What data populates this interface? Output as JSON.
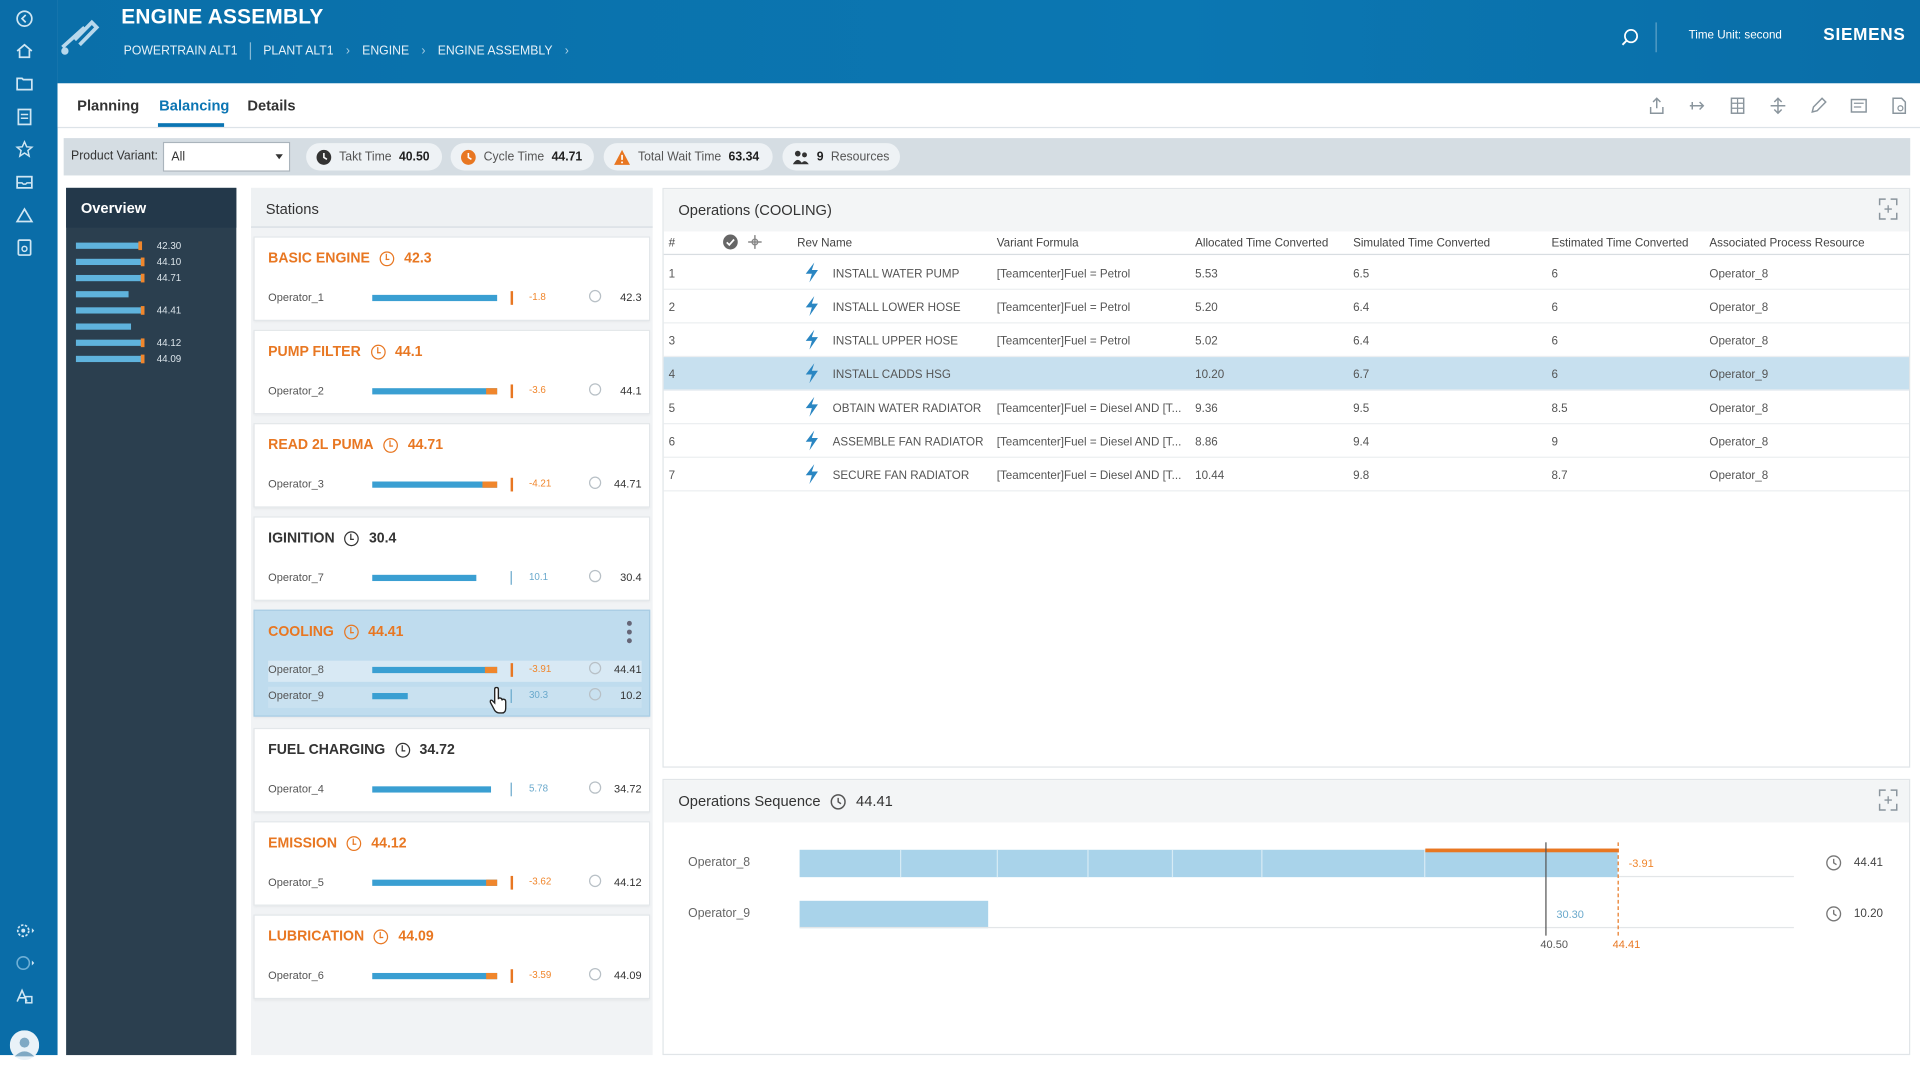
{
  "app": {
    "title": "ENGINE ASSEMBLY",
    "brand": "SIEMENS",
    "time_unit": "Time Unit: second"
  },
  "breadcrumb": [
    "POWERTRAIN ALT1",
    "PLANT ALT1",
    "ENGINE",
    "ENGINE ASSEMBLY"
  ],
  "tabs": [
    "Planning",
    "Balancing",
    "Details"
  ],
  "kpi": {
    "product_variant_label": "Product Variant:",
    "product_variant_value": "All",
    "takt_label": "Takt Time",
    "takt_value": "40.50",
    "cycle_label": "Cycle Time",
    "cycle_value": "44.71",
    "wait_label": "Total Wait Time",
    "wait_value": "63.34",
    "resources_count": "9",
    "resources_label": "Resources"
  },
  "overview": {
    "title": "Overview",
    "values": [
      "42.30",
      "44.10",
      "44.71",
      "",
      "44.41",
      "",
      "44.12",
      "44.09"
    ]
  },
  "stations_title": "Stations",
  "stations": [
    {
      "name": "BASIC ENGINE",
      "time": "42.3",
      "ops": [
        {
          "name": "Operator_1",
          "delta": "-1.8",
          "value": "42.3",
          "fill": 0.89,
          "over": 0
        }
      ]
    },
    {
      "name": "PUMP FILTER",
      "time": "44.1",
      "ops": [
        {
          "name": "Operator_2",
          "delta": "-3.6",
          "value": "44.1",
          "fill": 0.89,
          "over": 0.08
        }
      ]
    },
    {
      "name": "READ 2L PUMA",
      "time": "44.71",
      "ops": [
        {
          "name": "Operator_3",
          "delta": "-4.21",
          "value": "44.71",
          "fill": 0.89,
          "over": 0.1
        }
      ]
    },
    {
      "name": "IGINITION",
      "time": "30.4",
      "ops": [
        {
          "name": "Operator_7",
          "delta": "10.1",
          "value": "30.4",
          "fill": 0.74,
          "over": 0
        }
      ]
    },
    {
      "name": "COOLING",
      "time": "44.41",
      "ops": [
        {
          "name": "Operator_8",
          "delta": "-3.91",
          "value": "44.41",
          "fill": 0.89,
          "over": 0.09
        },
        {
          "name": "Operator_9",
          "delta": "30.3",
          "value": "10.2",
          "fill": 0.25,
          "over": 0
        }
      ]
    },
    {
      "name": "FUEL CHARGING",
      "time": "34.72",
      "ops": [
        {
          "name": "Operator_4",
          "delta": "5.78",
          "value": "34.72",
          "fill": 0.84,
          "over": 0
        }
      ]
    },
    {
      "name": "EMISSION",
      "time": "44.12",
      "ops": [
        {
          "name": "Operator_5",
          "delta": "-3.62",
          "value": "44.12",
          "fill": 0.89,
          "over": 0.08
        }
      ]
    },
    {
      "name": "LUBRICATION",
      "time": "44.09",
      "ops": [
        {
          "name": "Operator_6",
          "delta": "-3.59",
          "value": "44.09",
          "fill": 0.89,
          "over": 0.08
        }
      ]
    }
  ],
  "operations": {
    "title": "Operations (COOLING)",
    "columns": [
      "#",
      "Rev Name",
      "Variant Formula",
      "Allocated Time Converted",
      "Simulated Time Converted",
      "Estimated Time Converted",
      "Associated Process Resource"
    ],
    "rows": [
      [
        "1",
        "INSTALL WATER PUMP",
        "[Teamcenter]Fuel = Petrol",
        "5.53",
        "6.5",
        "6",
        "Operator_8"
      ],
      [
        "2",
        "INSTALL LOWER HOSE",
        "[Teamcenter]Fuel = Petrol",
        "5.20",
        "6.4",
        "6",
        "Operator_8"
      ],
      [
        "3",
        "INSTALL UPPER HOSE",
        "[Teamcenter]Fuel = Petrol",
        "5.02",
        "6.4",
        "6",
        "Operator_8"
      ],
      [
        "4",
        "INSTALL CADDS HSG",
        "",
        "10.20",
        "6.7",
        "6",
        "Operator_9"
      ],
      [
        "5",
        "OBTAIN WATER RADIATOR",
        "[Teamcenter]Fuel = Diesel AND [T...",
        "9.36",
        "9.5",
        "8.5",
        "Operator_8"
      ],
      [
        "6",
        "ASSEMBLE FAN RADIATOR",
        "[Teamcenter]Fuel = Diesel AND [T...",
        "8.86",
        "9.4",
        "9",
        "Operator_8"
      ],
      [
        "7",
        "SECURE FAN RADIATOR",
        "[Teamcenter]Fuel = Diesel AND [T...",
        "10.44",
        "9.8",
        "8.7",
        "Operator_8"
      ]
    ]
  },
  "sequence": {
    "title": "Operations Sequence",
    "total": "44.41",
    "rows": [
      {
        "name": "Operator_8",
        "delta": "-3.91",
        "total": "44.41"
      },
      {
        "name": "Operator_9",
        "delta": "30.30",
        "total": "10.20"
      }
    ],
    "takt_label": "40.50",
    "cycle_label": "44.41"
  },
  "colors": {
    "primary": "#0b75b3",
    "accent": "#e87722",
    "bar": "#3a9fd2"
  }
}
